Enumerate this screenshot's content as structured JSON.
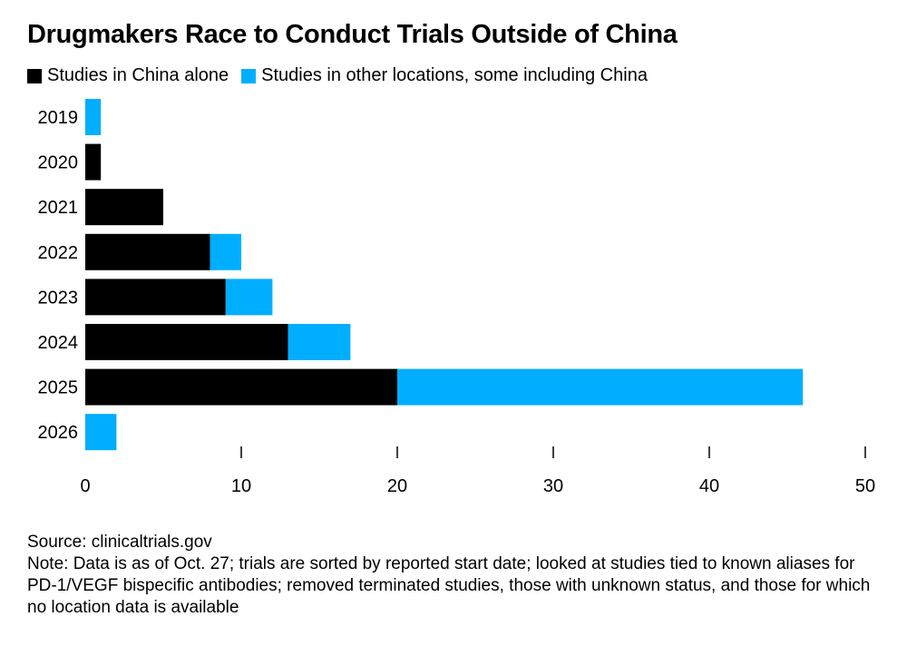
{
  "chart_data": {
    "type": "bar",
    "orientation": "horizontal",
    "stacked": true,
    "title": "Drugmakers Race to Conduct Trials Outside of China",
    "categories": [
      "2019",
      "2020",
      "2021",
      "2022",
      "2023",
      "2024",
      "2025",
      "2026"
    ],
    "series": [
      {
        "name": "Studies in China alone",
        "color": "#000000",
        "values": [
          0,
          1,
          5,
          8,
          9,
          13,
          20,
          0
        ]
      },
      {
        "name": "Studies in other locations, some including China",
        "color": "#00AEFF",
        "values": [
          1,
          0,
          0,
          2,
          3,
          4,
          26,
          2
        ]
      }
    ],
    "xlim": [
      0,
      50
    ],
    "xticks": [
      "0",
      "10",
      "20",
      "30",
      "40",
      "50"
    ],
    "legend": "top-left",
    "grid": false
  },
  "source": "Source: clinicaltrials.gov",
  "note": "Note: Data is as of Oct. 27; trials are sorted by reported start date; looked at studies tied to known aliases for PD-1/VEGF bispecific antibodies; removed terminated studies, those with unknown status, and those for which no location data is available"
}
